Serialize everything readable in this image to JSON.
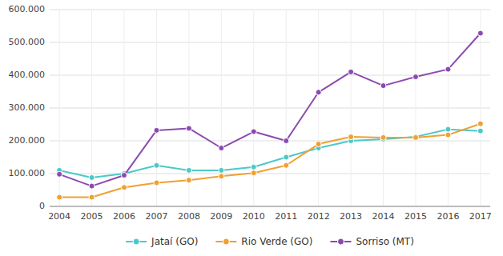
{
  "chart_data": {
    "type": "line",
    "x": [
      2004,
      2005,
      2006,
      2007,
      2008,
      2009,
      2010,
      2011,
      2012,
      2013,
      2014,
      2015,
      2016,
      2017
    ],
    "xlim": [
      2003.7,
      2017.3
    ],
    "xticks": [
      2004,
      2005,
      2006,
      2007,
      2008,
      2009,
      2010,
      2011,
      2012,
      2013,
      2014,
      2015,
      2016,
      2017
    ],
    "ylim": [
      0,
      600000
    ],
    "yticks": [
      0,
      {
        "value": 100000,
        "label": "100.000"
      },
      {
        "value": 200000,
        "label": "200.000"
      },
      {
        "value": 300000,
        "label": "300.000"
      },
      {
        "value": 400000,
        "label": "400.000"
      },
      {
        "value": 500000,
        "label": "500.000"
      },
      {
        "value": 600000,
        "label": "600.000"
      }
    ],
    "grid": true,
    "legend": "bottom",
    "marker": "circle",
    "series": [
      {
        "name": "Jataí (GO)",
        "color": "#4DC8C8",
        "values": [
          110000,
          88000,
          100000,
          125000,
          110000,
          110000,
          120000,
          150000,
          178000,
          200000,
          205000,
          212000,
          235000,
          230000
        ]
      },
      {
        "name": "Rio Verde (GO)",
        "color": "#F0A030",
        "values": [
          28000,
          28000,
          58000,
          72000,
          80000,
          92000,
          102000,
          125000,
          190000,
          212000,
          210000,
          210000,
          218000,
          252000
        ]
      },
      {
        "name": "Sorriso (MT)",
        "color": "#8B4AAF",
        "values": [
          98000,
          62000,
          95000,
          232000,
          238000,
          178000,
          228000,
          200000,
          348000,
          410000,
          368000,
          395000,
          418000,
          528000
        ]
      }
    ]
  }
}
